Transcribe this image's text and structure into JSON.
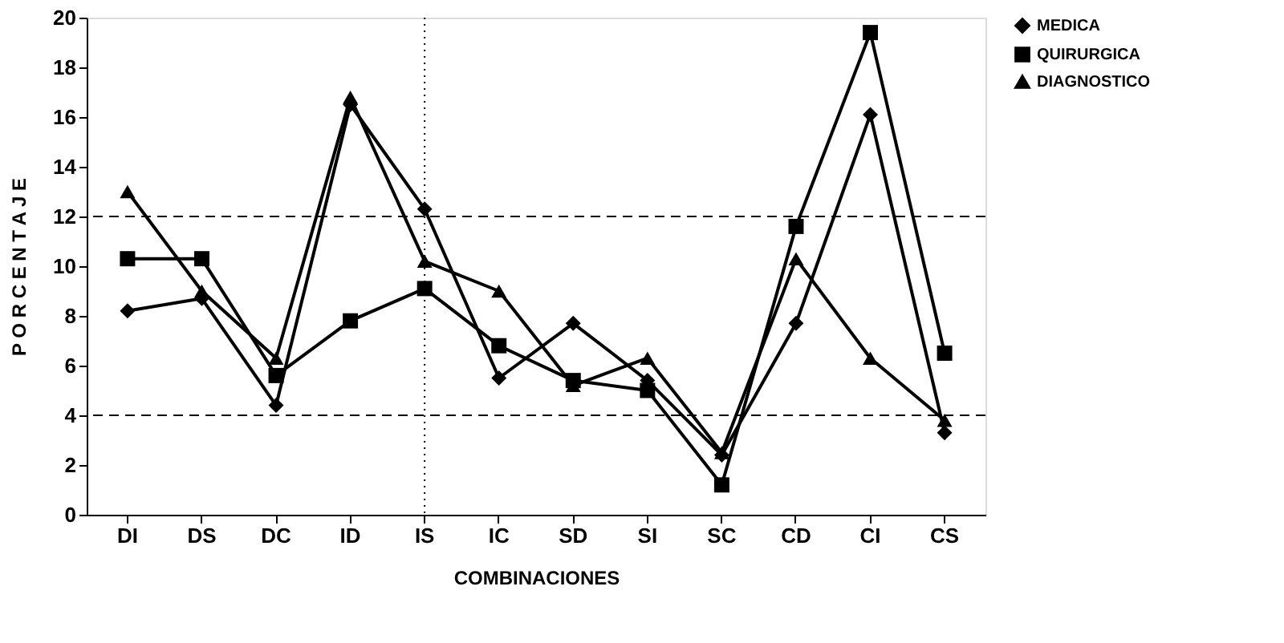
{
  "chart_data": {
    "type": "line",
    "xlabel": "COMBINACIONES",
    "ylabel": "P O R C E N T A J E",
    "categories": [
      "DI",
      "DS",
      "DC",
      "ID",
      "IS",
      "IC",
      "SD",
      "SI",
      "SC",
      "CD",
      "CI",
      "CS"
    ],
    "series": [
      {
        "name": "MEDICA",
        "color": "#000000",
        "marker": "diamond",
        "values": [
          8.2,
          8.7,
          4.4,
          16.5,
          12.3,
          5.5,
          7.7,
          5.4,
          2.4,
          7.7,
          16.1,
          3.3
        ]
      },
      {
        "name": "QUIRURGICA",
        "color": "#000000",
        "marker": "square",
        "values": [
          10.3,
          10.3,
          5.6,
          7.8,
          9.1,
          6.8,
          5.4,
          5.0,
          1.2,
          11.6,
          19.4,
          6.5
        ]
      },
      {
        "name": "DIAGNOSTICO",
        "color": "#000000",
        "marker": "triangle",
        "values": [
          13.0,
          9.0,
          6.3,
          16.8,
          10.2,
          9.0,
          5.2,
          6.3,
          2.5,
          10.3,
          6.3,
          3.8
        ]
      }
    ],
    "ylim": [
      0,
      20
    ],
    "yticks": [
      0,
      2,
      4,
      6,
      8,
      10,
      12,
      14,
      16,
      18,
      20
    ],
    "grid": false,
    "legend": "top right",
    "line_style": "solid",
    "ref_lines": [
      {
        "axis": "y",
        "value": 4,
        "color": "#000000",
        "line_style": "dashed"
      },
      {
        "axis": "y",
        "value": 12,
        "color": "#000000",
        "line_style": "dashed"
      },
      {
        "axis": "x",
        "value": "IS",
        "color": "#000000",
        "line_style": "dotted"
      }
    ]
  }
}
